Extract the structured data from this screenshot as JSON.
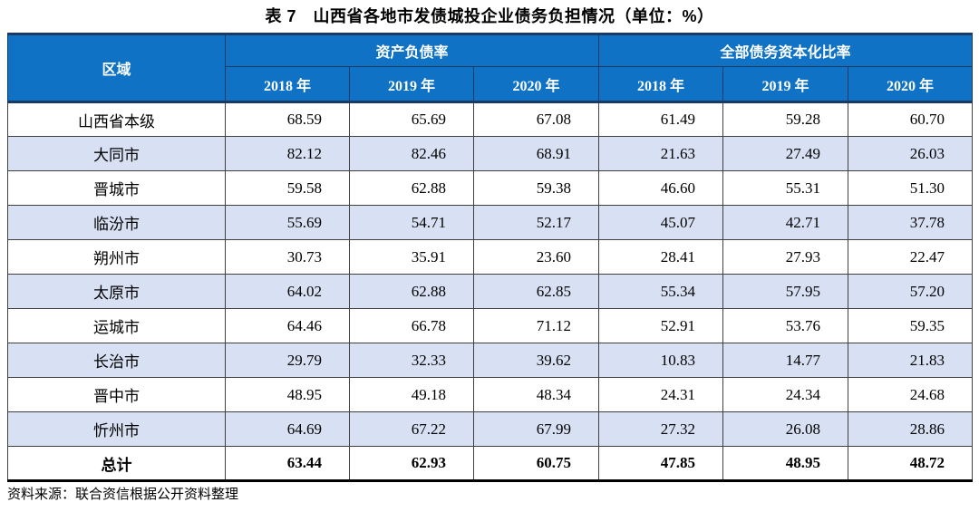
{
  "title": "表 7　山西省各地市发债城投企业债务负担情况（单位：%）",
  "table": {
    "header": {
      "region": "区域",
      "groups": [
        {
          "label": "资产负债率",
          "years": [
            "2018 年",
            "2019 年",
            "2020 年"
          ]
        },
        {
          "label": "全部债务资本化比率",
          "years": [
            "2018 年",
            "2019 年",
            "2020 年"
          ]
        }
      ]
    },
    "rows": [
      {
        "region": "山西省本级",
        "values": [
          "68.59",
          "65.69",
          "67.08",
          "61.49",
          "59.28",
          "60.70"
        ]
      },
      {
        "region": "大同市",
        "values": [
          "82.12",
          "82.46",
          "68.91",
          "21.63",
          "27.49",
          "26.03"
        ]
      },
      {
        "region": "晋城市",
        "values": [
          "59.58",
          "62.88",
          "59.38",
          "46.60",
          "55.31",
          "51.30"
        ]
      },
      {
        "region": "临汾市",
        "values": [
          "55.69",
          "54.71",
          "52.17",
          "45.07",
          "42.71",
          "37.78"
        ]
      },
      {
        "region": "朔州市",
        "values": [
          "30.73",
          "35.91",
          "23.60",
          "28.41",
          "27.93",
          "22.47"
        ]
      },
      {
        "region": "太原市",
        "values": [
          "64.02",
          "62.88",
          "62.85",
          "55.34",
          "57.95",
          "57.20"
        ]
      },
      {
        "region": "运城市",
        "values": [
          "64.46",
          "66.78",
          "71.12",
          "52.91",
          "53.76",
          "59.35"
        ]
      },
      {
        "region": "长治市",
        "values": [
          "29.79",
          "32.33",
          "39.62",
          "10.83",
          "14.77",
          "21.83"
        ]
      },
      {
        "region": "晋中市",
        "values": [
          "48.95",
          "49.18",
          "48.34",
          "24.31",
          "24.34",
          "24.68"
        ]
      },
      {
        "region": "忻州市",
        "values": [
          "64.69",
          "67.22",
          "67.99",
          "27.32",
          "26.08",
          "28.86"
        ]
      }
    ],
    "total_row": {
      "region": "总计",
      "values": [
        "63.44",
        "62.93",
        "60.75",
        "47.85",
        "48.95",
        "48.72"
      ]
    }
  },
  "source_note": "资料来源：联合资信根据公开资料整理",
  "colors": {
    "header_blue": "#0F72C5",
    "header_dark_line": "#1B3A63",
    "alt_row_blue": "#D8E1F3",
    "cell_border": "#404040"
  }
}
